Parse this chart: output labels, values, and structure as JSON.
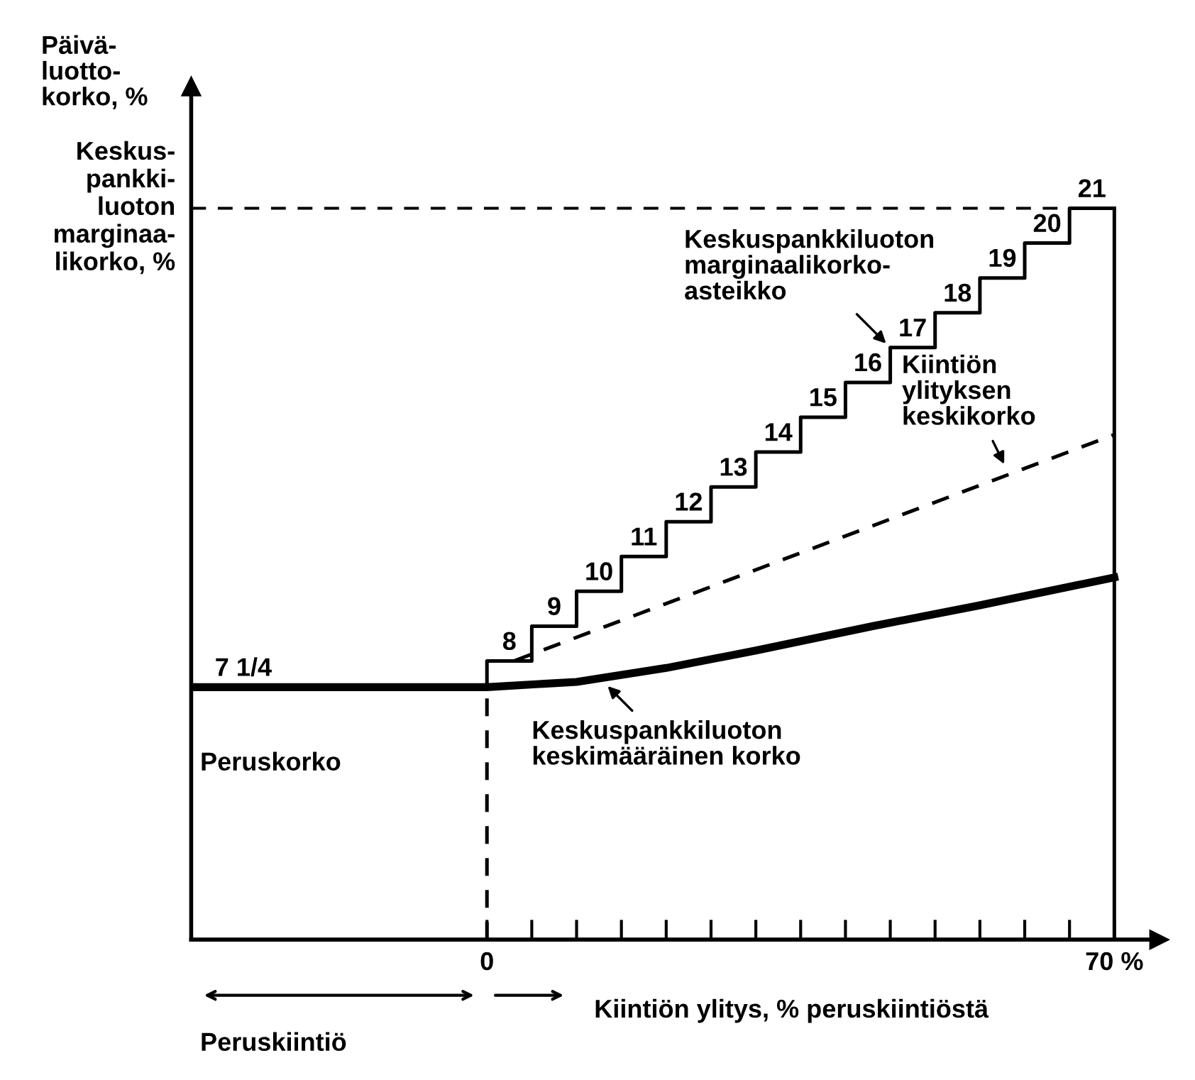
{
  "chart_data": {
    "type": "line",
    "ylabel": "Päivä-\nluotto-\nkorko, %",
    "xlabel": "Kiintiön ylitys, % peruskiintiöstä",
    "xlim": [
      -33,
      75
    ],
    "ylim": [
      0,
      24.5
    ],
    "xticks": [
      {
        "value": 0,
        "label": "0"
      },
      {
        "value": 5,
        "label": null
      },
      {
        "value": 10,
        "label": null
      },
      {
        "value": 15,
        "label": null
      },
      {
        "value": 20,
        "label": null
      },
      {
        "value": 25,
        "label": null
      },
      {
        "value": 30,
        "label": null
      },
      {
        "value": 35,
        "label": null
      },
      {
        "value": 40,
        "label": null
      },
      {
        "value": 45,
        "label": null
      },
      {
        "value": 50,
        "label": null
      },
      {
        "value": 55,
        "label": null
      },
      {
        "value": 60,
        "label": null
      },
      {
        "value": 65,
        "label": null
      },
      {
        "value": 70,
        "label": "70 %"
      }
    ],
    "tick_labels": "x",
    "grid": false,
    "series": [
      {
        "type": "step",
        "color": "#000000",
        "x": [
          -33,
          0,
          5,
          10,
          15,
          20,
          25,
          30,
          35,
          40,
          45,
          50,
          55,
          60,
          65,
          70
        ],
        "values": [
          7.25,
          8,
          9,
          10,
          11,
          12,
          13,
          14,
          15,
          16,
          17,
          18,
          19,
          20,
          21,
          21
        ],
        "value_labels": [
          "7 1/4",
          "8",
          "9",
          "10",
          "11",
          "12",
          "13",
          "14",
          "15",
          "16",
          "17",
          "18",
          "19",
          "20",
          "21",
          null
        ]
      },
      {
        "color": "#000000",
        "line_style": "dashed",
        "x": [
          3,
          70
        ],
        "values": [
          8,
          14.5
        ]
      },
      {
        "color": "#000000",
        "line_style": "solid",
        "x": [
          -33,
          0,
          10,
          20,
          30,
          43,
          55,
          70
        ],
        "values": [
          7.25,
          7.25,
          7.4,
          7.8,
          8.3,
          9.0,
          9.6,
          10.4
        ]
      }
    ],
    "ref_lines": [
      {
        "axis": "y",
        "value": 21,
        "label": "Keskus-\npankki-\nluoton\nmarginaa-\nlikorko, %",
        "line_style": "dashed",
        "color": "#000000"
      },
      {
        "axis": "x",
        "value": 0,
        "label": null,
        "line_style": "dashed",
        "color": "#000000"
      },
      {
        "axis": "x",
        "value": 70,
        "label": null,
        "line_style": "solid",
        "color": "#000000"
      }
    ],
    "annotations": [
      {
        "text": "Keskuspankkiluoton\nmarginaalikorko-\nasteikko",
        "x": 45,
        "y": 17
      },
      {
        "text": "Kiintiön\nylityksen\nkeskikorko",
        "x": 58,
        "y": 13.5
      },
      {
        "text": "Keskuspankkiluoton\nkeskimääräinen korko",
        "x": 13,
        "y": 7.4
      },
      "Peruskorko",
      "Peruskiintiö"
    ]
  }
}
